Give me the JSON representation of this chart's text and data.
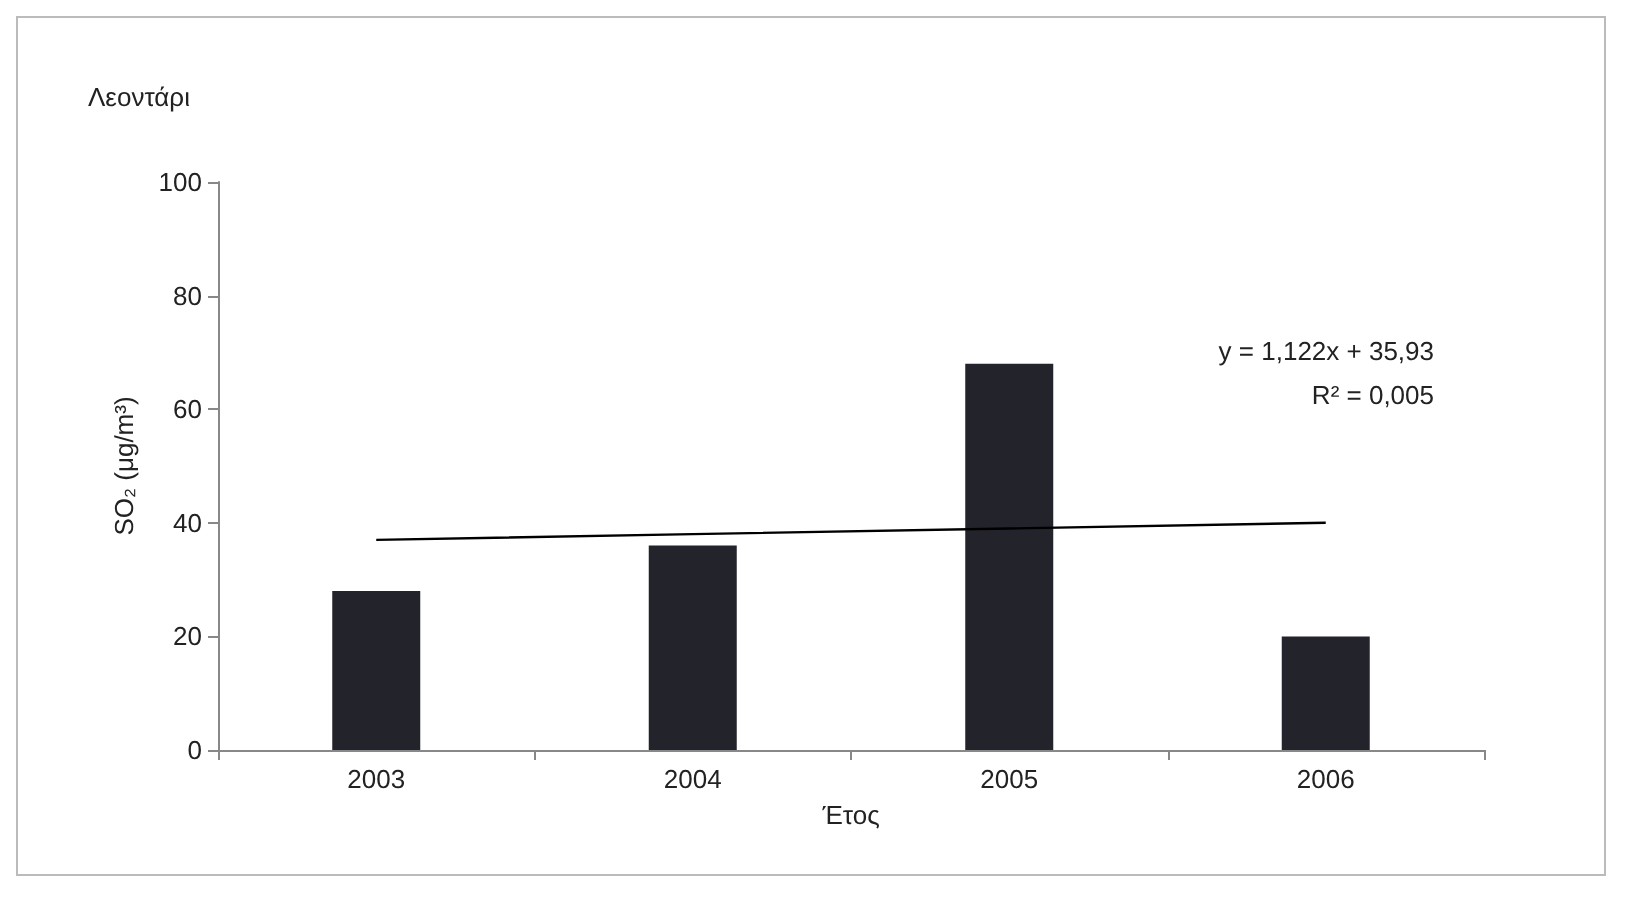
{
  "chart_data": {
    "type": "bar",
    "title": "Λεοντάρι",
    "xlabel": "Έτος",
    "ylabel": "SO₂ (μg/m³)",
    "categories": [
      "2003",
      "2004",
      "2005",
      "2006"
    ],
    "series": [
      {
        "color": "#23232b",
        "values": [
          28,
          36,
          68,
          20
        ]
      },
      {
        "type": "line",
        "color": "#000000",
        "values": [
          37,
          38,
          39,
          40
        ]
      }
    ],
    "ylim": [
      0,
      100
    ],
    "yticks": [
      0,
      20,
      40,
      60,
      80,
      100
    ],
    "grid": false,
    "marker": "none",
    "line_style": "solid",
    "annotations": [
      "y = 1,122x + 35,93",
      "R² = 0,005"
    ]
  }
}
